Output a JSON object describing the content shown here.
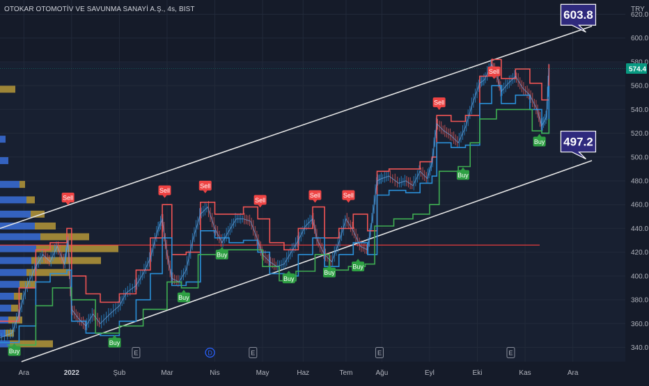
{
  "header": {
    "symbol_title": "OTOKAR OTOMOTİV VE SAVUNMA SANAYİ A.Ş., 4s, BIST",
    "currency": "TRY"
  },
  "colors": {
    "background": "#151b29",
    "grid": "#222a3a",
    "axis_text": "#b2b5be",
    "candle_up": "#2a8fd8",
    "candle_down": "#e65a5a",
    "band_upper": "#f05454",
    "band_lower": "#2a8fd8",
    "support_line": "#3fae52",
    "horizontal_level": "#e23c3c",
    "channel_line": "#e6e6e6",
    "price_badge": "#089981",
    "callout_bg": "#2f2a7d",
    "sell_badge": "#ef4444",
    "buy_badge": "#2ea043",
    "volume_profile_blue": "#3a6fd8",
    "volume_profile_gold": "#c9a73a"
  },
  "chart_data": {
    "type": "line",
    "title": "OTOKAR OTOMOTİV VE SAVUNMA SANAYİ A.Ş., 4s, BIST",
    "currency": "TRY",
    "ylim": [
      328,
      632
    ],
    "y_ticks": [
      340,
      360,
      380,
      400,
      420,
      440,
      460,
      480,
      500,
      520,
      540,
      560,
      580,
      600,
      620
    ],
    "x_ticks": [
      "Ara",
      "2022",
      "Şub",
      "Mar",
      "Nis",
      "May",
      "Haz",
      "Tem",
      "Ağu",
      "Eyl",
      "Eki",
      "Kas",
      "Ara"
    ],
    "x_tick_pos": [
      1.0,
      3.0,
      5.0,
      7.0,
      9.0,
      11.0,
      12.7,
      14.5,
      16.0,
      18.0,
      20.0,
      22.0,
      24.0
    ],
    "xlim": [
      0,
      26.2
    ],
    "last_price": "574.4",
    "last_price_value": 574.4,
    "horizontal_level": 426,
    "price_path": [
      [
        0.0,
        348
      ],
      [
        0.5,
        352
      ],
      [
        0.8,
        368
      ],
      [
        1.1,
        390
      ],
      [
        1.5,
        408
      ],
      [
        1.8,
        418
      ],
      [
        2.1,
        412
      ],
      [
        2.4,
        425
      ],
      [
        2.7,
        410
      ],
      [
        2.85,
        430
      ],
      [
        3.0,
        372
      ],
      [
        3.3,
        364
      ],
      [
        3.6,
        358
      ],
      [
        3.9,
        368
      ],
      [
        4.2,
        360
      ],
      [
        4.6,
        368
      ],
      [
        5.0,
        375
      ],
      [
        5.3,
        386
      ],
      [
        5.7,
        392
      ],
      [
        6.0,
        402
      ],
      [
        6.3,
        415
      ],
      [
        6.6,
        438
      ],
      [
        6.8,
        448
      ],
      [
        7.0,
        418
      ],
      [
        7.2,
        398
      ],
      [
        7.5,
        395
      ],
      [
        7.8,
        405
      ],
      [
        8.1,
        432
      ],
      [
        8.4,
        452
      ],
      [
        8.7,
        458
      ],
      [
        9.0,
        440
      ],
      [
        9.3,
        428
      ],
      [
        9.6,
        438
      ],
      [
        9.9,
        448
      ],
      [
        10.2,
        448
      ],
      [
        10.5,
        446
      ],
      [
        10.8,
        430
      ],
      [
        11.0,
        418
      ],
      [
        11.3,
        412
      ],
      [
        11.6,
        408
      ],
      [
        11.9,
        410
      ],
      [
        12.2,
        420
      ],
      [
        12.5,
        430
      ],
      [
        12.8,
        442
      ],
      [
        13.1,
        448
      ],
      [
        13.3,
        430
      ],
      [
        13.6,
        418
      ],
      [
        13.9,
        412
      ],
      [
        14.2,
        428
      ],
      [
        14.5,
        448
      ],
      [
        14.8,
        438
      ],
      [
        15.1,
        425
      ],
      [
        15.4,
        422
      ],
      [
        15.6,
        448
      ],
      [
        15.8,
        480
      ],
      [
        16.0,
        482
      ],
      [
        16.3,
        484
      ],
      [
        16.7,
        478
      ],
      [
        17.0,
        480
      ],
      [
        17.3,
        476
      ],
      [
        17.6,
        488
      ],
      [
        17.9,
        482
      ],
      [
        18.1,
        495
      ],
      [
        18.3,
        528
      ],
      [
        18.6,
        522
      ],
      [
        18.9,
        518
      ],
      [
        19.2,
        512
      ],
      [
        19.5,
        525
      ],
      [
        19.8,
        545
      ],
      [
        20.1,
        562
      ],
      [
        20.3,
        565
      ],
      [
        20.6,
        578
      ],
      [
        20.8,
        570
      ],
      [
        21.0,
        555
      ],
      [
        21.3,
        562
      ],
      [
        21.6,
        568
      ],
      [
        21.9,
        558
      ],
      [
        22.2,
        552
      ],
      [
        22.5,
        540
      ],
      [
        22.7,
        526
      ],
      [
        22.9,
        534
      ],
      [
        23.0,
        574.4
      ]
    ],
    "upper_band": [
      [
        0.0,
        362
      ],
      [
        0.8,
        390
      ],
      [
        1.5,
        422
      ],
      [
        2.1,
        428
      ],
      [
        2.8,
        440
      ],
      [
        3.0,
        400
      ],
      [
        3.6,
        385
      ],
      [
        4.2,
        378
      ],
      [
        5.0,
        385
      ],
      [
        5.7,
        405
      ],
      [
        6.3,
        432
      ],
      [
        6.8,
        460
      ],
      [
        7.2,
        418
      ],
      [
        7.8,
        420
      ],
      [
        8.4,
        462
      ],
      [
        9.0,
        452
      ],
      [
        9.6,
        452
      ],
      [
        10.2,
        458
      ],
      [
        10.8,
        448
      ],
      [
        11.3,
        428
      ],
      [
        11.9,
        422
      ],
      [
        12.5,
        440
      ],
      [
        13.1,
        458
      ],
      [
        13.6,
        432
      ],
      [
        14.2,
        440
      ],
      [
        14.8,
        452
      ],
      [
        15.4,
        438
      ],
      [
        15.8,
        488
      ],
      [
        16.3,
        490
      ],
      [
        17.0,
        490
      ],
      [
        17.6,
        496
      ],
      [
        18.1,
        500
      ],
      [
        18.3,
        535
      ],
      [
        18.9,
        530
      ],
      [
        19.5,
        535
      ],
      [
        20.1,
        568
      ],
      [
        20.6,
        582
      ],
      [
        21.0,
        566
      ],
      [
        21.6,
        574
      ],
      [
        22.2,
        562
      ],
      [
        22.7,
        548
      ],
      [
        23.0,
        578
      ]
    ],
    "lower_band": [
      [
        0.0,
        344
      ],
      [
        0.8,
        358
      ],
      [
        1.5,
        395
      ],
      [
        2.1,
        402
      ],
      [
        2.8,
        405
      ],
      [
        3.0,
        362
      ],
      [
        3.6,
        352
      ],
      [
        4.2,
        350
      ],
      [
        5.0,
        362
      ],
      [
        5.7,
        380
      ],
      [
        6.3,
        402
      ],
      [
        6.8,
        432
      ],
      [
        7.2,
        392
      ],
      [
        7.8,
        395
      ],
      [
        8.4,
        438
      ],
      [
        9.0,
        432
      ],
      [
        9.6,
        428
      ],
      [
        10.2,
        430
      ],
      [
        10.8,
        420
      ],
      [
        11.3,
        402
      ],
      [
        11.9,
        400
      ],
      [
        12.5,
        418
      ],
      [
        13.1,
        432
      ],
      [
        13.6,
        408
      ],
      [
        14.2,
        418
      ],
      [
        14.8,
        428
      ],
      [
        15.4,
        418
      ],
      [
        15.8,
        468
      ],
      [
        16.3,
        472
      ],
      [
        17.0,
        470
      ],
      [
        17.6,
        478
      ],
      [
        18.1,
        484
      ],
      [
        18.3,
        512
      ],
      [
        18.9,
        508
      ],
      [
        19.5,
        510
      ],
      [
        20.1,
        545
      ],
      [
        20.6,
        560
      ],
      [
        21.0,
        545
      ],
      [
        21.6,
        552
      ],
      [
        22.2,
        540
      ],
      [
        22.7,
        520
      ],
      [
        23.0,
        560
      ]
    ],
    "support_line": [
      [
        0.3,
        342
      ],
      [
        1.5,
        375
      ],
      [
        2.2,
        390
      ],
      [
        3.0,
        380
      ],
      [
        4.0,
        352
      ],
      [
        5.0,
        358
      ],
      [
        6.0,
        372
      ],
      [
        7.0,
        395
      ],
      [
        7.6,
        390
      ],
      [
        8.3,
        418
      ],
      [
        9.2,
        422
      ],
      [
        10.3,
        422
      ],
      [
        11.0,
        408
      ],
      [
        11.7,
        396
      ],
      [
        12.4,
        404
      ],
      [
        13.2,
        418
      ],
      [
        13.8,
        405
      ],
      [
        14.6,
        408
      ],
      [
        15.3,
        410
      ],
      [
        15.7,
        442
      ],
      [
        16.5,
        448
      ],
      [
        17.3,
        452
      ],
      [
        18.0,
        460
      ],
      [
        18.4,
        488
      ],
      [
        19.2,
        492
      ],
      [
        19.7,
        512
      ],
      [
        20.1,
        532
      ],
      [
        20.8,
        540
      ],
      [
        21.6,
        540
      ],
      [
        22.3,
        522
      ],
      [
        22.7,
        520
      ],
      [
        23.0,
        532
      ]
    ],
    "channel_upper": [
      [
        0.0,
        440
      ],
      [
        24.8,
        610
      ]
    ],
    "channel_lower": [
      [
        0.9,
        328
      ],
      [
        24.8,
        497
      ]
    ],
    "callouts": [
      {
        "text": "603.8",
        "x": 24.2,
        "y": 603.8
      },
      {
        "text": "497.2",
        "x": 24.2,
        "y": 497.2
      }
    ],
    "signals": [
      {
        "label": "Sell",
        "x": 2.85,
        "y": 466
      },
      {
        "label": "Sell",
        "x": 6.9,
        "y": 472
      },
      {
        "label": "Sell",
        "x": 8.6,
        "y": 476
      },
      {
        "label": "Sell",
        "x": 10.9,
        "y": 464
      },
      {
        "label": "Sell",
        "x": 13.2,
        "y": 468
      },
      {
        "label": "Sell",
        "x": 14.6,
        "y": 468
      },
      {
        "label": "Sell",
        "x": 18.4,
        "y": 546
      },
      {
        "label": "Sell",
        "x": 20.7,
        "y": 572
      },
      {
        "label": "Buy",
        "x": 0.6,
        "y": 337
      },
      {
        "label": "Buy",
        "x": 4.8,
        "y": 344
      },
      {
        "label": "Buy",
        "x": 7.7,
        "y": 382
      },
      {
        "label": "Buy",
        "x": 9.3,
        "y": 418
      },
      {
        "label": "Buy",
        "x": 12.1,
        "y": 398
      },
      {
        "label": "Buy",
        "x": 13.8,
        "y": 403
      },
      {
        "label": "Buy",
        "x": 15.0,
        "y": 408
      },
      {
        "label": "Buy",
        "x": 19.4,
        "y": 485
      },
      {
        "label": "Buy",
        "x": 22.6,
        "y": 513
      }
    ],
    "events": [
      {
        "label": "E",
        "x": 5.7
      },
      {
        "label": "D",
        "x": 8.8
      },
      {
        "label": "E",
        "x": 10.6
      },
      {
        "label": "E",
        "x": 15.9
      },
      {
        "label": "E",
        "x": 21.4
      }
    ],
    "volume_profile": [
      {
        "price": 557,
        "blue": 0,
        "gold": 22
      },
      {
        "price": 515,
        "blue": 8,
        "gold": 0
      },
      {
        "price": 497,
        "blue": 12,
        "gold": 0
      },
      {
        "price": 477,
        "blue": 28,
        "gold": 8
      },
      {
        "price": 464,
        "blue": 38,
        "gold": 12
      },
      {
        "price": 452,
        "blue": 44,
        "gold": 20
      },
      {
        "price": 442,
        "blue": 50,
        "gold": 30
      },
      {
        "price": 433,
        "blue": 58,
        "gold": 70
      },
      {
        "price": 423,
        "blue": 52,
        "gold": 118
      },
      {
        "price": 413,
        "blue": 45,
        "gold": 100
      },
      {
        "price": 403,
        "blue": 38,
        "gold": 62
      },
      {
        "price": 393,
        "blue": 28,
        "gold": 24
      },
      {
        "price": 383,
        "blue": 20,
        "gold": 12
      },
      {
        "price": 373,
        "blue": 16,
        "gold": 10
      },
      {
        "price": 363,
        "blue": 12,
        "gold": 20
      },
      {
        "price": 352,
        "blue": 8,
        "gold": 12
      },
      {
        "price": 343,
        "blue": 14,
        "gold": 62
      }
    ]
  }
}
